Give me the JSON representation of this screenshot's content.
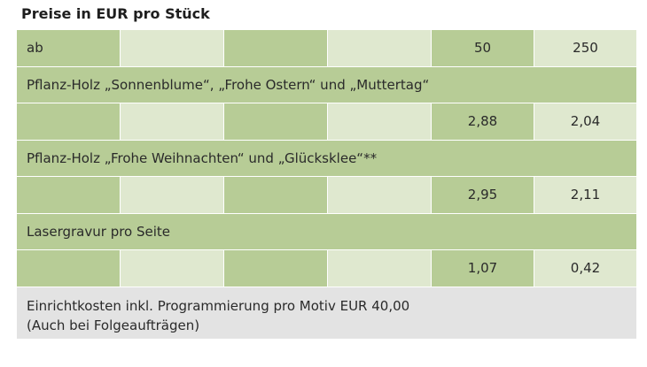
{
  "title": "Preise in EUR pro Stück",
  "header_row": {
    "label": "ab",
    "quantities": [
      "50",
      "250"
    ]
  },
  "sections": [
    {
      "label": "Pflanz-Holz „Sonnenblume“, „Frohe Ostern“ und „Muttertag“",
      "prices": [
        "2,88",
        "2,04"
      ]
    },
    {
      "label": "Pflanz-Holz „Frohe Weihnachten“ und „Glücksklee“**",
      "prices": [
        "2,95",
        "2,11"
      ]
    },
    {
      "label": "Lasergravur pro Seite",
      "prices": [
        "1,07",
        "0,42"
      ]
    }
  ],
  "footer": {
    "line1": "Einrichtkosten inkl. Programmierung pro Motiv EUR 40,00",
    "line2": "(Auch bei Folgeaufträgen)"
  },
  "colors": {
    "dark_green": "#b7cc96",
    "light_green": "#dfe8cf",
    "footer_gray": "#e3e3e3"
  }
}
